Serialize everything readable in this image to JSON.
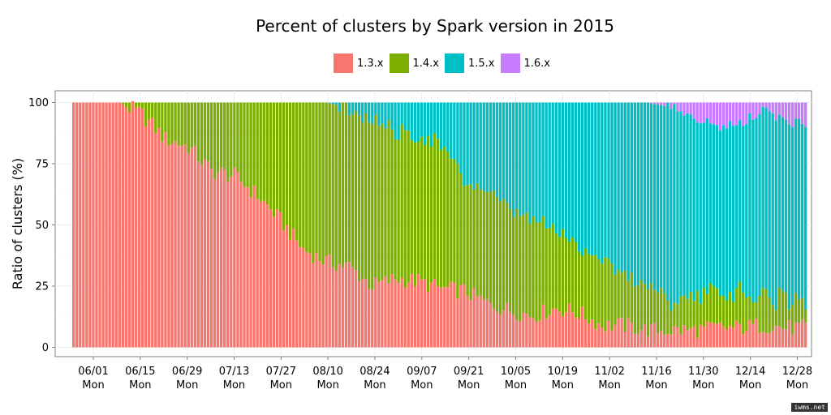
{
  "chart_data": {
    "type": "bar",
    "stacked": true,
    "title": "Percent of clusters by Spark version in 2015",
    "xlabel": "",
    "ylabel": "Ratio of clusters (%)",
    "ylim": [
      0,
      100
    ],
    "yticks": [
      0,
      25,
      50,
      75,
      100
    ],
    "grid": true,
    "legend_position": "top",
    "x_ticks": [
      {
        "date": "06/01",
        "day": "Mon"
      },
      {
        "date": "06/15",
        "day": "Mon"
      },
      {
        "date": "06/29",
        "day": "Mon"
      },
      {
        "date": "07/13",
        "day": "Mon"
      },
      {
        "date": "07/27",
        "day": "Mon"
      },
      {
        "date": "08/10",
        "day": "Mon"
      },
      {
        "date": "08/24",
        "day": "Mon"
      },
      {
        "date": "09/07",
        "day": "Mon"
      },
      {
        "date": "09/21",
        "day": "Mon"
      },
      {
        "date": "10/05",
        "day": "Mon"
      },
      {
        "date": "10/19",
        "day": "Mon"
      },
      {
        "date": "11/02",
        "day": "Mon"
      },
      {
        "date": "11/16",
        "day": "Mon"
      },
      {
        "date": "11/30",
        "day": "Mon"
      },
      {
        "date": "12/14",
        "day": "Mon"
      },
      {
        "date": "12/28",
        "day": "Mon"
      }
    ],
    "series": [
      {
        "name": "1.3.x",
        "color": "#F8766D"
      },
      {
        "name": "1.4.x",
        "color": "#7CAE00"
      },
      {
        "name": "1.5.x",
        "color": "#00BFC4"
      },
      {
        "name": "1.6.x",
        "color": "#C77CFF"
      }
    ],
    "weekly_mon_values": [
      {
        "week": "05/25",
        "v13": 100,
        "v14": 0,
        "v15": 0,
        "v16": 0
      },
      {
        "week": "06/01",
        "v13": 100,
        "v14": 0,
        "v15": 0,
        "v16": 0
      },
      {
        "week": "06/08",
        "v13": 100,
        "v14": 0,
        "v15": 0,
        "v16": 0
      },
      {
        "week": "06/15",
        "v13": 95,
        "v14": 5,
        "v15": 0,
        "v16": 0
      },
      {
        "week": "06/22",
        "v13": 85,
        "v14": 15,
        "v15": 0,
        "v16": 0
      },
      {
        "week": "06/29",
        "v13": 82,
        "v14": 18,
        "v15": 0,
        "v16": 0
      },
      {
        "week": "07/06",
        "v13": 72,
        "v14": 28,
        "v15": 0,
        "v16": 0
      },
      {
        "week": "07/13",
        "v13": 70,
        "v14": 30,
        "v15": 0,
        "v16": 0
      },
      {
        "week": "07/20",
        "v13": 62,
        "v14": 38,
        "v15": 0,
        "v16": 0
      },
      {
        "week": "07/27",
        "v13": 52,
        "v14": 48,
        "v15": 0,
        "v16": 0
      },
      {
        "week": "08/03",
        "v13": 40,
        "v14": 60,
        "v15": 0,
        "v16": 0
      },
      {
        "week": "08/10",
        "v13": 35,
        "v14": 65,
        "v15": 0,
        "v16": 0
      },
      {
        "week": "08/17",
        "v13": 33,
        "v14": 65,
        "v15": 2,
        "v16": 0
      },
      {
        "week": "08/24",
        "v13": 25,
        "v14": 68,
        "v15": 7,
        "v16": 0
      },
      {
        "week": "08/31",
        "v13": 28,
        "v14": 60,
        "v15": 12,
        "v16": 0
      },
      {
        "week": "09/07",
        "v13": 27,
        "v14": 60,
        "v15": 13,
        "v16": 0
      },
      {
        "week": "09/14",
        "v13": 24,
        "v14": 59,
        "v15": 17,
        "v16": 0
      },
      {
        "week": "09/21",
        "v13": 23,
        "v14": 45,
        "v15": 32,
        "v16": 0
      },
      {
        "week": "09/28",
        "v13": 18,
        "v14": 46,
        "v15": 36,
        "v16": 0
      },
      {
        "week": "10/05",
        "v13": 15,
        "v14": 40,
        "v15": 45,
        "v16": 0
      },
      {
        "week": "10/12",
        "v13": 13,
        "v14": 39,
        "v15": 48,
        "v16": 0
      },
      {
        "week": "10/19",
        "v13": 16,
        "v14": 32,
        "v15": 52,
        "v16": 0
      },
      {
        "week": "10/26",
        "v13": 14,
        "v14": 27,
        "v15": 59,
        "v16": 0
      },
      {
        "week": "11/02",
        "v13": 9,
        "v14": 28,
        "v15": 63,
        "v16": 0
      },
      {
        "week": "11/09",
        "v13": 9,
        "v14": 20,
        "v15": 71,
        "v16": 0
      },
      {
        "week": "11/16",
        "v13": 7,
        "v14": 19,
        "v15": 74,
        "v16": 0
      },
      {
        "week": "11/23",
        "v13": 7,
        "v14": 12,
        "v15": 79,
        "v16": 2
      },
      {
        "week": "11/30",
        "v13": 7,
        "v14": 14,
        "v15": 73,
        "v16": 6
      },
      {
        "week": "12/07",
        "v13": 8,
        "v14": 15,
        "v15": 67,
        "v16": 10
      },
      {
        "week": "12/14",
        "v13": 8,
        "v14": 14,
        "v15": 69,
        "v16": 9
      },
      {
        "week": "12/21",
        "v13": 9,
        "v14": 11,
        "v15": 77,
        "v16": 3
      },
      {
        "week": "12/28",
        "v13": 8,
        "v14": 12,
        "v15": 72,
        "v16": 8
      }
    ]
  },
  "watermark": "iwms.net"
}
